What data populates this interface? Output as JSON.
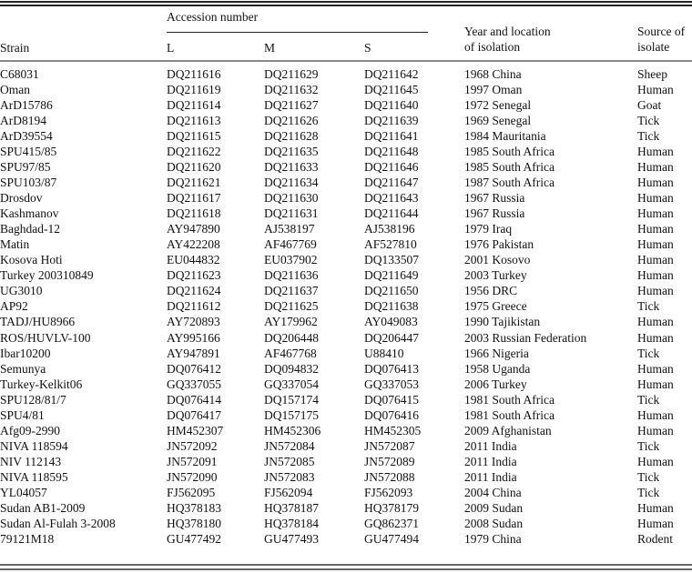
{
  "header": {
    "group": "Accession number",
    "strain": "Strain",
    "L": "L",
    "M": "M",
    "S": "S",
    "year_line1": "Year and location",
    "year_line2": "of isolation",
    "source_line1": "Source of",
    "source_line2": "isolate"
  },
  "rows": [
    [
      "C68031",
      "DQ211616",
      "DQ211629",
      "DQ211642",
      "1968 China",
      "Sheep"
    ],
    [
      "Oman",
      "DQ211619",
      "DQ211632",
      "DQ211645",
      "1997 Oman",
      "Human"
    ],
    [
      "ArD15786",
      "DQ211614",
      "DQ211627",
      "DQ211640",
      "1972 Senegal",
      "Goat"
    ],
    [
      "ArD8194",
      "DQ211613",
      "DQ211626",
      "DQ211639",
      "1969 Senegal",
      "Tick"
    ],
    [
      "ArD39554",
      "DQ211615",
      "DQ211628",
      "DQ211641",
      "1984 Mauritania",
      "Tick"
    ],
    [
      "SPU415/85",
      "DQ211622",
      "DQ211635",
      "DQ211648",
      "1985 South Africa",
      "Human"
    ],
    [
      "SPU97/85",
      "DQ211620",
      "DQ211633",
      "DQ211646",
      "1985 South Africa",
      "Human"
    ],
    [
      "SPU103/87",
      "DQ211621",
      "DQ211634",
      "DQ211647",
      "1987 South Africa",
      "Human"
    ],
    [
      "Drosdov",
      "DQ211617",
      "DQ211630",
      "DQ211643",
      "1967 Russia",
      "Human"
    ],
    [
      "Kashmanov",
      "DQ211618",
      "DQ211631",
      "DQ211644",
      "1967 Russia",
      "Human"
    ],
    [
      "Baghdad-12",
      "AY947890",
      "AJ538197",
      "AJ538196",
      "1979 Iraq",
      "Human"
    ],
    [
      "Matin",
      "AY422208",
      "AF467769",
      "AF527810",
      "1976 Pakistan",
      "Human"
    ],
    [
      "Kosova Hoti",
      "EU044832",
      "EU037902",
      "DQ133507",
      "2001 Kosovo",
      "Human"
    ],
    [
      "Turkey 200310849",
      "DQ211623",
      "DQ211636",
      "DQ211649",
      "2003 Turkey",
      "Human"
    ],
    [
      "UG3010",
      "DQ211624",
      "DQ211637",
      "DQ211650",
      "1956 DRC",
      "Human"
    ],
    [
      "AP92",
      "DQ211612",
      "DQ211625",
      "DQ211638",
      "1975 Greece",
      "Tick"
    ],
    [
      "TADJ/HU8966",
      "AY720893",
      "AY179962",
      "AY049083",
      "1990 Tajikistan",
      "Human"
    ],
    [
      "ROS/HUVLV-100",
      "AY995166",
      "DQ206448",
      "DQ206447",
      "2003 Russian Federation",
      "Human"
    ],
    [
      "Ibar10200",
      "AY947891",
      "AF467768",
      "U88410",
      "1966 Nigeria",
      "Tick"
    ],
    [
      "Semunya",
      "DQ076412",
      "DQ094832",
      "DQ076413",
      "1958 Uganda",
      "Human"
    ],
    [
      "Turkey-Kelkit06",
      "GQ337055",
      "GQ337054",
      "GQ337053",
      "2006 Turkey",
      "Human"
    ],
    [
      "SPU128/81/7",
      "DQ076414",
      "DQ157174",
      "DQ076415",
      "1981 South Africa",
      "Tick"
    ],
    [
      "SPU4/81",
      "DQ076417",
      "DQ157175",
      "DQ076416",
      "1981 South Africa",
      "Human"
    ],
    [
      "Afg09-2990",
      "HM452307",
      "HM452306",
      "HM452305",
      "2009 Afghanistan",
      "Human"
    ],
    [
      "NIVA 118594",
      "JN572092",
      "JN572084",
      "JN572087",
      "2011 India",
      "Tick"
    ],
    [
      "NIV 112143",
      "JN572091",
      "JN572085",
      "JN572089",
      "2011 India",
      "Human"
    ],
    [
      "NIVA 118595",
      "JN572090",
      "JN572083",
      "JN572088",
      "2011 India",
      "Tick"
    ],
    [
      "YL04057",
      "FJ562095",
      "FJ562094",
      "FJ562093",
      "2004 China",
      "Tick"
    ],
    [
      "Sudan AB1-2009",
      "HQ378183",
      "HQ378187",
      "HQ378179",
      "2009 Sudan",
      "Human"
    ],
    [
      "Sudan Al-Fulah 3-2008",
      "HQ378180",
      "HQ378184",
      "GQ862371",
      "2008 Sudan",
      "Human"
    ],
    [
      "79121M18",
      "GU477492",
      "GU477493",
      "GU477494",
      "1979 China",
      "Rodent"
    ]
  ]
}
